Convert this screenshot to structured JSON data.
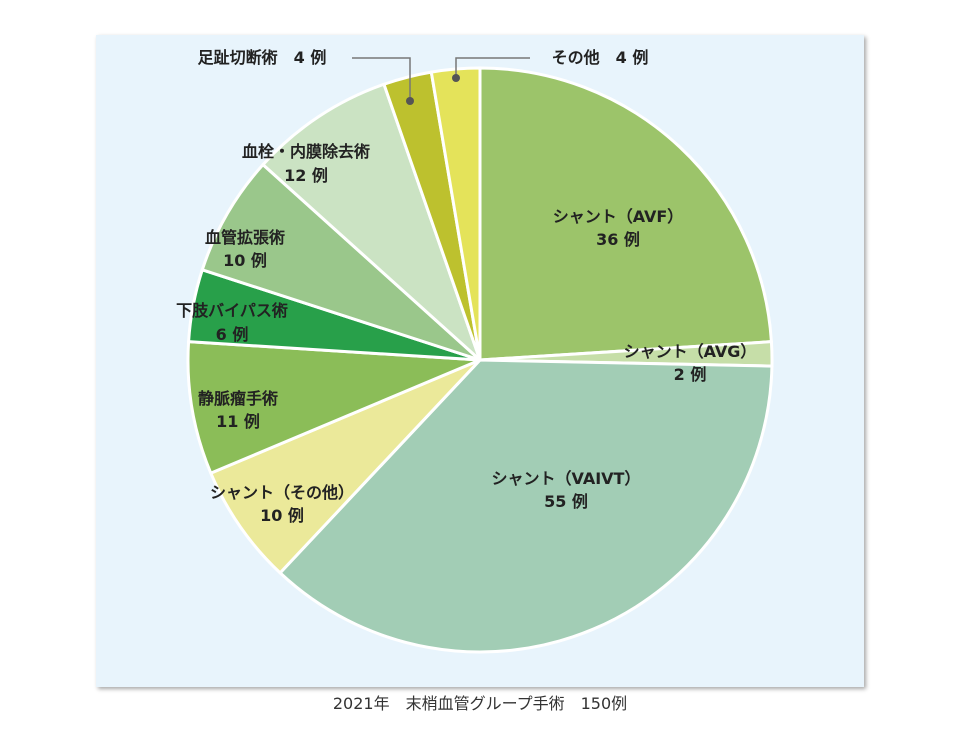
{
  "chart_data": {
    "type": "pie",
    "title": "",
    "total": 150,
    "slices": [
      {
        "name": "シャント（AVF）",
        "value": 36,
        "value_label": "36 例",
        "color": "#9cc46a"
      },
      {
        "name": "シャント（AVG）",
        "value": 2,
        "value_label": "2 例",
        "color": "#c6dea8"
      },
      {
        "name": "シャント（VAIVT）",
        "value": 55,
        "value_label": "55 例",
        "color": "#a2cdb5"
      },
      {
        "name": "シャント（その他）",
        "value": 10,
        "value_label": "10 例",
        "color": "#ebe99a"
      },
      {
        "name": "静脈瘤手術",
        "value": 11,
        "value_label": "11 例",
        "color": "#8bbd58"
      },
      {
        "name": "下肢バイパス術",
        "value": 6,
        "value_label": "6 例",
        "color": "#28a04a"
      },
      {
        "name": "血管拡張術",
        "value": 10,
        "value_label": "10 例",
        "color": "#9ac78b"
      },
      {
        "name": "血栓・内膜除去術",
        "value": 12,
        "value_label": "12 例",
        "color": "#cbe3c3"
      },
      {
        "name": "足趾切断術",
        "value": 4,
        "value_label": "4 例",
        "color": "#bdc12e"
      },
      {
        "name": "その他",
        "value": 4,
        "value_label": "4 例",
        "color": "#e4e35a"
      }
    ]
  },
  "caption": "2021年　末梢血管グループ手術　150例"
}
